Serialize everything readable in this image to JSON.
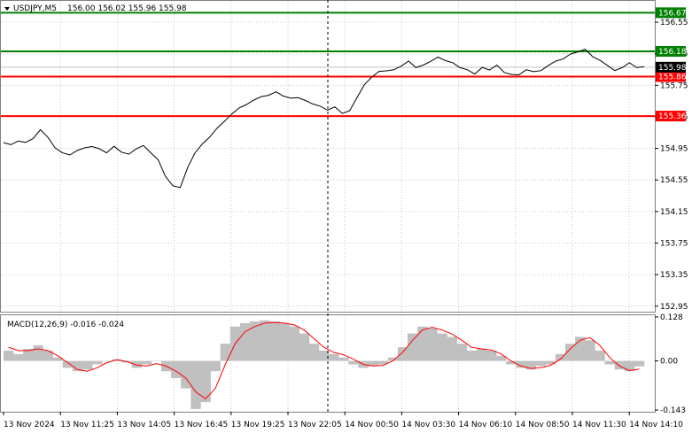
{
  "header": {
    "symbol": "USDJPY,M5",
    "ohlc": "156.00 156.02 155.96 155.98"
  },
  "macd_header": "MACD(12,26,9) -0.016 -0.024",
  "colors": {
    "price_line": "#000000",
    "green_level": "#008000",
    "red_level": "#ff0000",
    "current_price_bg": "#000000",
    "macd_hist": "#c0c0c0",
    "macd_signal": "#ff0000",
    "grid": "#c8c8c8"
  },
  "levels": [
    {
      "value": 156.67,
      "label": "156.67",
      "color": "green"
    },
    {
      "value": 156.18,
      "label": "156.18",
      "color": "green"
    },
    {
      "value": 155.86,
      "label": "155.86",
      "color": "red"
    },
    {
      "value": 155.36,
      "label": "155.36",
      "color": "red"
    }
  ],
  "current_price": {
    "value": 155.98,
    "label": "155.98"
  },
  "chart_data": {
    "type": "line",
    "title": "USDJPY,M5",
    "price_axis": {
      "ylim": [
        152.88,
        156.82
      ],
      "ticks": [
        "156.55",
        "156.15",
        "155.75",
        "155.35",
        "154.95",
        "154.55",
        "154.15",
        "153.75",
        "153.35",
        "152.95"
      ],
      "tick_values": [
        156.55,
        156.15,
        155.75,
        155.35,
        154.95,
        154.55,
        154.15,
        153.75,
        153.35,
        152.95
      ]
    },
    "x_ticks": [
      "13 Nov 2024",
      "13 Nov 11:25",
      "13 Nov 14:05",
      "13 Nov 16:45",
      "13 Nov 19:25",
      "13 Nov 22:05",
      "14 Nov 00:50",
      "14 Nov 03:30",
      "14 Nov 06:10",
      "14 Nov 08:50",
      "14 Nov 11:30",
      "14 Nov 14:10"
    ],
    "series": [
      {
        "values": [
          155.03,
          154.99,
          155.05,
          155.02,
          155.08,
          155.18,
          155.1,
          154.95,
          154.9,
          154.86,
          154.93,
          154.95,
          154.98,
          154.94,
          154.9,
          154.97,
          154.91,
          154.87,
          154.95,
          154.98,
          154.9,
          154.8,
          154.6,
          154.47,
          154.46,
          154.7,
          154.9,
          155.0,
          155.1,
          155.2,
          155.3,
          155.38,
          155.47,
          155.5,
          155.57,
          155.6,
          155.63,
          155.66,
          155.62,
          155.58,
          155.6,
          155.55,
          155.52,
          155.48,
          155.44,
          155.47,
          155.4,
          155.42,
          155.6,
          155.75,
          155.86,
          155.92,
          155.94,
          155.94,
          156.0,
          156.05,
          155.98,
          156.0,
          156.06,
          156.1,
          156.07,
          156.03,
          155.98,
          155.94,
          155.9,
          155.97,
          155.95,
          156.0,
          155.92,
          155.88,
          155.89,
          155.94,
          155.93,
          155.93,
          156.01,
          156.05,
          156.09,
          156.14,
          156.18,
          156.2,
          156.12,
          156.06,
          156.01,
          155.93,
          155.98,
          156.03,
          155.98,
          155.98
        ]
      }
    ],
    "macd": {
      "ylim": [
        -0.148,
        0.133
      ],
      "ticks": [
        "0.128",
        "0.00",
        "-0.143"
      ],
      "tick_values": [
        0.128,
        0.0,
        -0.143
      ],
      "histogram": [
        0.03,
        0.02,
        0.035,
        0.045,
        0.03,
        0.01,
        -0.02,
        -0.03,
        -0.025,
        -0.01,
        0.0,
        0.005,
        -0.005,
        -0.02,
        -0.01,
        0.0,
        -0.03,
        -0.05,
        -0.08,
        -0.14,
        -0.12,
        -0.03,
        0.05,
        0.1,
        0.11,
        0.115,
        0.118,
        0.115,
        0.11,
        0.1,
        0.08,
        0.05,
        0.03,
        0.02,
        0.01,
        -0.01,
        -0.02,
        -0.015,
        -0.01,
        0.01,
        0.04,
        0.08,
        0.1,
        0.095,
        0.08,
        0.07,
        0.05,
        0.03,
        0.035,
        0.03,
        0.015,
        -0.01,
        -0.02,
        -0.025,
        -0.015,
        -0.01,
        0.02,
        0.05,
        0.07,
        0.06,
        0.03,
        -0.01,
        -0.025,
        -0.03,
        -0.016
      ],
      "signal": [
        0.04,
        0.03,
        0.03,
        0.035,
        0.03,
        0.015,
        -0.005,
        -0.025,
        -0.03,
        -0.02,
        -0.005,
        0.003,
        -0.002,
        -0.012,
        -0.015,
        -0.008,
        -0.015,
        -0.03,
        -0.05,
        -0.09,
        -0.11,
        -0.08,
        -0.01,
        0.05,
        0.085,
        0.1,
        0.11,
        0.112,
        0.11,
        0.105,
        0.09,
        0.065,
        0.04,
        0.025,
        0.018,
        0.005,
        -0.01,
        -0.015,
        -0.013,
        0.0,
        0.025,
        0.06,
        0.09,
        0.098,
        0.09,
        0.078,
        0.06,
        0.04,
        0.035,
        0.032,
        0.02,
        0.0,
        -0.015,
        -0.022,
        -0.02,
        -0.013,
        0.005,
        0.035,
        0.06,
        0.068,
        0.045,
        0.01,
        -0.015,
        -0.028,
        -0.024
      ]
    }
  }
}
